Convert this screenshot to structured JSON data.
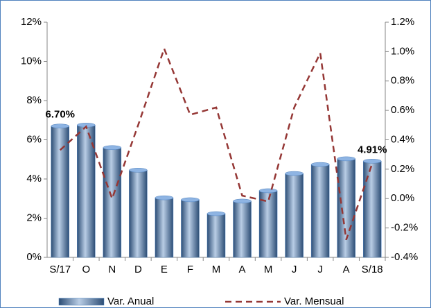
{
  "chart_data": {
    "type": "bar-line",
    "categories": [
      "S/17",
      "O",
      "N",
      "D",
      "E",
      "F",
      "M",
      "A",
      "M",
      "J",
      "J",
      "A",
      "S/18"
    ],
    "series": [
      {
        "name": "Var. Anual",
        "type": "bar",
        "color": "#4f81bd",
        "values": [
          6.7,
          6.75,
          5.6,
          4.45,
          3.04,
          2.94,
          2.23,
          2.87,
          3.4,
          4.28,
          4.74,
          5.03,
          4.91
        ],
        "value_labels": [
          "6.70%",
          null,
          null,
          null,
          null,
          null,
          null,
          null,
          null,
          null,
          null,
          null,
          "4.91%"
        ]
      },
      {
        "name": "Var. Mensual",
        "type": "line",
        "axis": "y2",
        "color": "#953735",
        "values": [
          0.33,
          0.49,
          0.0,
          0.5,
          1.02,
          0.57,
          0.62,
          0.02,
          -0.02,
          0.62,
          0.99,
          -0.28,
          0.24
        ]
      }
    ],
    "ylim": [
      0,
      12
    ],
    "yticks": [
      {
        "value": 0,
        "label": "0%"
      },
      {
        "value": 2,
        "label": "2%"
      },
      {
        "value": 4,
        "label": "4%"
      },
      {
        "value": 6,
        "label": "6%"
      },
      {
        "value": 8,
        "label": "8%"
      },
      {
        "value": 10,
        "label": "10%"
      },
      {
        "value": 12,
        "label": "12%"
      }
    ],
    "y2lim": [
      -0.4,
      1.2
    ],
    "y2ticks": [
      {
        "value": -0.4,
        "label": "-0.4%"
      },
      {
        "value": -0.2,
        "label": "-0.2%"
      },
      {
        "value": 0,
        "label": "0.0%"
      },
      {
        "value": 0.2,
        "label": "0.2%"
      },
      {
        "value": 0.4,
        "label": "0.4%"
      },
      {
        "value": 0.6,
        "label": "0.6%"
      },
      {
        "value": 0.8,
        "label": "0.8%"
      },
      {
        "value": 1.0,
        "label": "1.0%"
      },
      {
        "value": 1.2,
        "label": "1.2%"
      }
    ],
    "legend": "bottom"
  }
}
